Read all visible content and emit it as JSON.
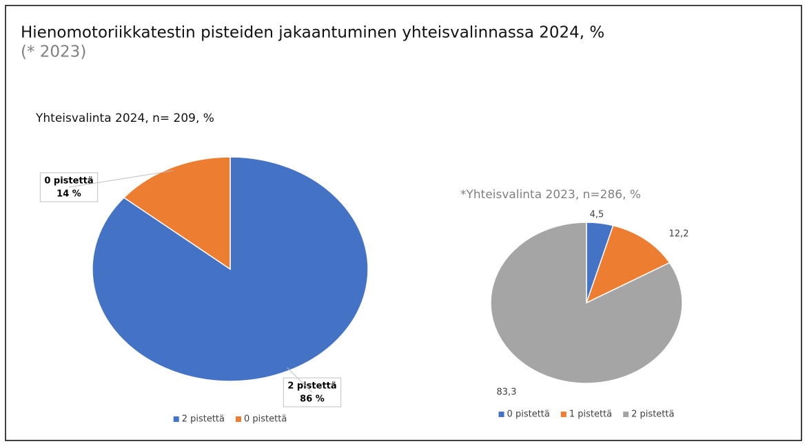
{
  "title": "Hienomotoriikkatestin pisteiden jakaantuminen yhteisvalinnassa 2024, %",
  "subtitle": "(* 2023)",
  "chart_data": [
    {
      "type": "pie",
      "title": "Yhteisvalinta 2024, n= 209, %",
      "categories": [
        "2 pistettä",
        "0 pistettä"
      ],
      "values": [
        86,
        14
      ],
      "value_labels": [
        "86 %",
        "14 %"
      ],
      "colors": [
        "#4472c4",
        "#ed7d31"
      ],
      "legend": "bottom"
    },
    {
      "type": "pie",
      "title": "*Yhteisvalinta 2023, n=286, %",
      "categories": [
        "0 pistettä",
        "1 pistettä",
        "2 pistettä"
      ],
      "values": [
        4.5,
        12.2,
        83.3
      ],
      "value_labels": [
        "4,5",
        "12,2",
        "83,3"
      ],
      "colors": [
        "#4472c4",
        "#ed7d31",
        "#a5a5a5"
      ],
      "legend": "bottom"
    }
  ]
}
